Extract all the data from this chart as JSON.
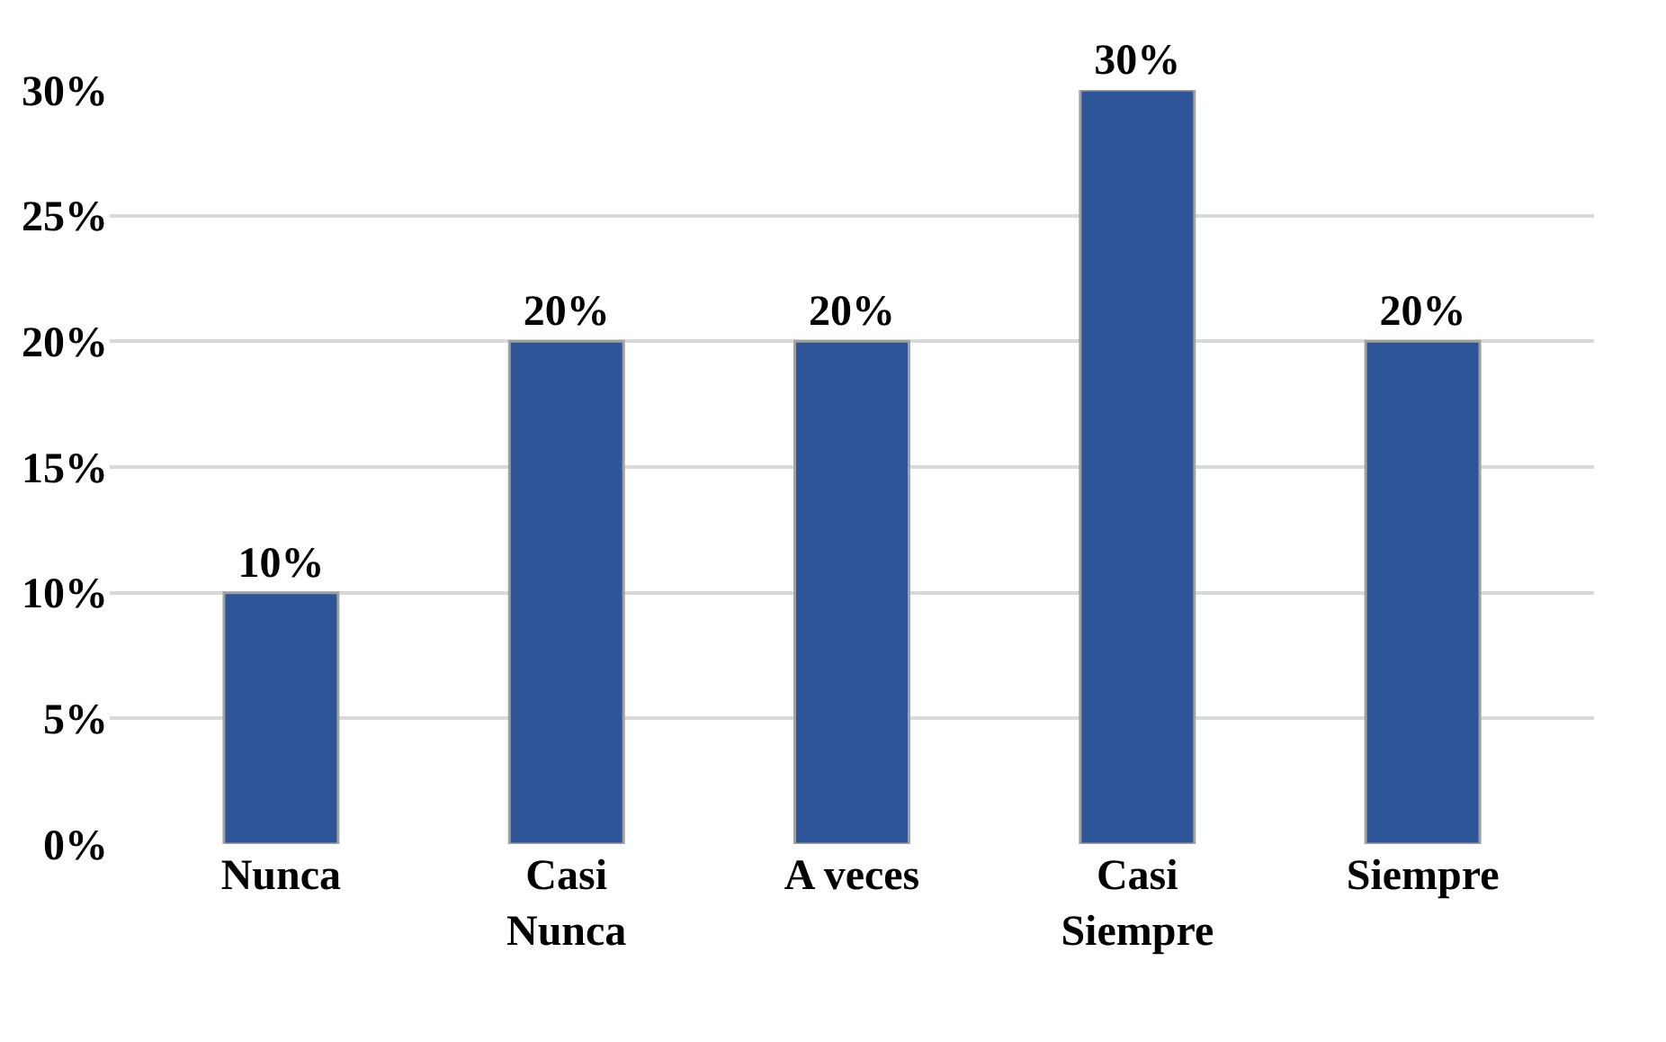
{
  "chart_data": {
    "type": "bar",
    "categories": [
      "Nunca",
      "Casi\nNunca",
      "A veces",
      "Casi\nSiempre",
      "Siempre"
    ],
    "values": [
      10,
      20,
      20,
      30,
      20
    ],
    "value_labels": [
      "10%",
      "20%",
      "20%",
      "30%",
      "20%"
    ],
    "color": "#2e5597",
    "ylim": [
      0,
      30
    ],
    "yticks": [
      {
        "value": 0,
        "label": "0%"
      },
      {
        "value": 5,
        "label": "5%"
      },
      {
        "value": 10,
        "label": "10%"
      },
      {
        "value": 15,
        "label": "15%"
      },
      {
        "value": 20,
        "label": "20%"
      },
      {
        "value": 25,
        "label": "25%"
      },
      {
        "value": 30,
        "label": "30%"
      }
    ],
    "grid": "y"
  }
}
